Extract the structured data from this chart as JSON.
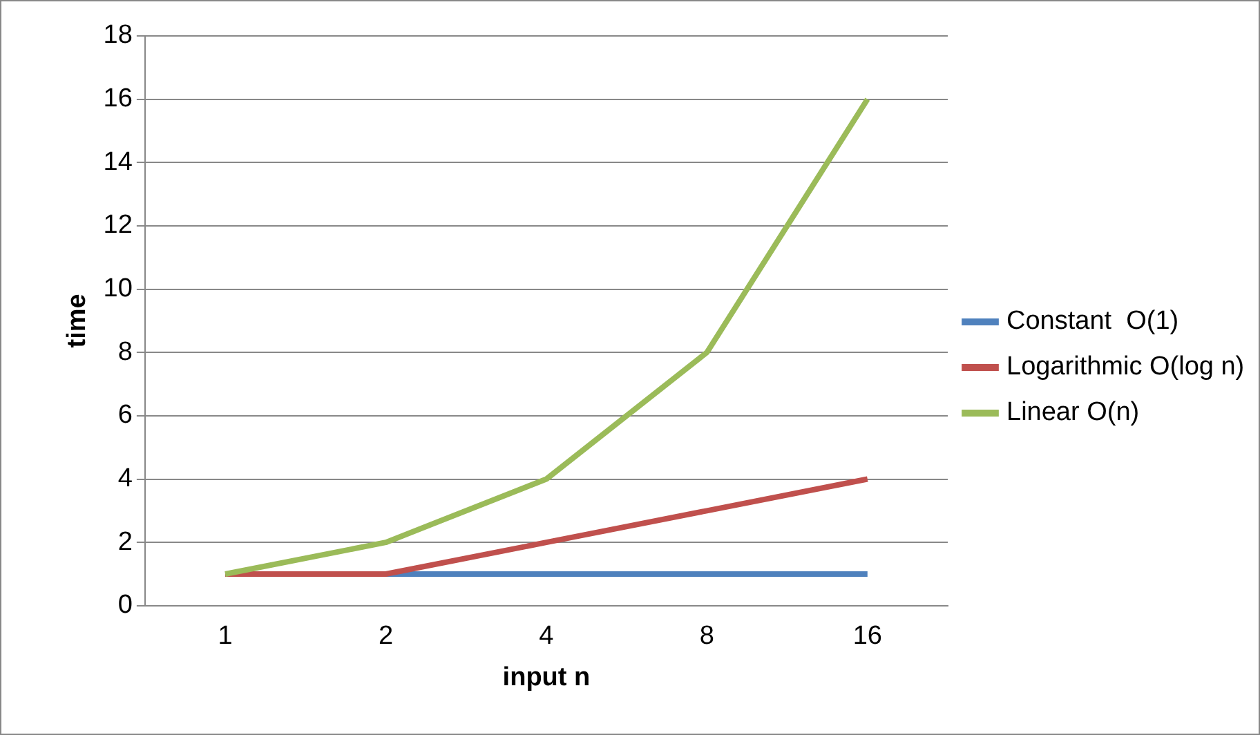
{
  "chart_data": {
    "type": "line",
    "xlabel": "input n",
    "ylabel": "time",
    "categories": [
      "1",
      "2",
      "4",
      "8",
      "16"
    ],
    "series": [
      {
        "name": "Constant  O(1)",
        "color": "#4f81bd",
        "values": [
          1,
          1,
          1,
          1,
          1
        ]
      },
      {
        "name": "Logarithmic O(log n)",
        "color": "#c0504d",
        "values": [
          1,
          1,
          2,
          3,
          4
        ]
      },
      {
        "name": "Linear O(n)",
        "color": "#9bbb59",
        "values": [
          1,
          2,
          4,
          8,
          16
        ]
      }
    ],
    "ylim": [
      0,
      18
    ],
    "yticks": [
      0,
      2,
      4,
      6,
      8,
      10,
      12,
      14,
      16,
      18
    ],
    "grid": "y",
    "legend": "right",
    "marker": "none",
    "line_style": "solid"
  }
}
